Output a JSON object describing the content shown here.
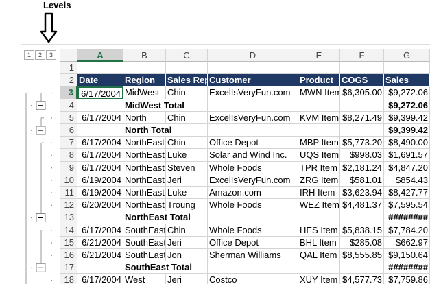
{
  "levels_label": "Levels",
  "outline_levels": [
    "1",
    "2",
    "3"
  ],
  "columns": [
    "A",
    "B",
    "C",
    "D",
    "E",
    "F",
    "G"
  ],
  "rows": [
    {
      "number": "1",
      "cells": {}
    },
    {
      "number": "2",
      "header": true,
      "cells": {
        "A": "Date",
        "B": "Region",
        "C": "Sales Rep",
        "D": "Customer",
        "E": "Product",
        "F": "COGS",
        "G": "Sales"
      }
    },
    {
      "number": "3",
      "cells": {
        "A": "6/17/2004",
        "B": "MidWest",
        "C": "Chin",
        "D": "ExcelIsVeryFun.com",
        "E": "MWN Item",
        "F": "$6,305.00",
        "G": "$9,272.06"
      }
    },
    {
      "number": "4",
      "total": true,
      "cells": {
        "B": "MidWest Total",
        "G": "$9,272.06"
      }
    },
    {
      "number": "5",
      "cells": {
        "A": "6/17/2004",
        "B": "North",
        "C": "Chin",
        "D": "ExcelIsVeryFun.com",
        "E": "KVM Item",
        "F": "$8,271.49",
        "G": "$9,399.42"
      }
    },
    {
      "number": "6",
      "total": true,
      "cells": {
        "B": "North Total",
        "G": "$9,399.42"
      }
    },
    {
      "number": "7",
      "cells": {
        "A": "6/17/2004",
        "B": "NorthEast",
        "C": "Chin",
        "D": "Office Depot",
        "E": "MBP Item",
        "F": "$5,773.20",
        "G": "$8,490.00"
      }
    },
    {
      "number": "8",
      "cells": {
        "A": "6/17/2004",
        "B": "NorthEast",
        "C": "Luke",
        "D": "Solar and Wind Inc.",
        "E": "UQS Item",
        "F": "$998.03",
        "G": "$1,691.57"
      }
    },
    {
      "number": "9",
      "cells": {
        "A": "6/17/2004",
        "B": "NorthEast",
        "C": "Steven",
        "D": "Whole Foods",
        "E": "TPR Item",
        "F": "$2,181.24",
        "G": "$4,847.20"
      }
    },
    {
      "number": "10",
      "cells": {
        "A": "6/19/2004",
        "B": "NorthEast",
        "C": "Jeri",
        "D": "ExcelIsVeryFun.com",
        "E": "ZRG Item",
        "F": "$581.01",
        "G": "$854.43"
      }
    },
    {
      "number": "11",
      "cells": {
        "A": "6/19/2004",
        "B": "NorthEast",
        "C": "Luke",
        "D": "Amazon.com",
        "E": "IRH Item",
        "F": "$3,623.94",
        "G": "$8,427.77"
      }
    },
    {
      "number": "12",
      "cells": {
        "A": "6/20/2004",
        "B": "NorthEast",
        "C": "Troung",
        "D": "Whole Foods",
        "E": "WEZ Item",
        "F": "$4,481.37",
        "G": "$7,595.54"
      }
    },
    {
      "number": "13",
      "total": true,
      "cells": {
        "B": "NorthEast Total",
        "G": "########"
      }
    },
    {
      "number": "14",
      "cells": {
        "A": "6/17/2004",
        "B": "SouthEast",
        "C": "Chin",
        "D": "Whole Foods",
        "E": "HES Item",
        "F": "$5,838.15",
        "G": "$7,784.20"
      }
    },
    {
      "number": "15",
      "cells": {
        "A": "6/21/2004",
        "B": "SouthEast",
        "C": "Jeri",
        "D": "Office Depot",
        "E": "BHL Item",
        "F": "$285.08",
        "G": "$662.97"
      }
    },
    {
      "number": "16",
      "cells": {
        "A": "6/21/2004",
        "B": "SouthEast",
        "C": "Jon",
        "D": "Sherman Williams",
        "E": "QAL Item",
        "F": "$8,555.85",
        "G": "$9,150.64"
      }
    },
    {
      "number": "17",
      "total": true,
      "cells": {
        "B": "SouthEast Total",
        "G": "########"
      }
    },
    {
      "number": "18",
      "cells": {
        "A": "6/17/2004",
        "B": "West",
        "C": "Jeri",
        "D": "Costco",
        "E": "XUY Item",
        "F": "$4,577.73",
        "G": "$7,759.86"
      }
    }
  ]
}
